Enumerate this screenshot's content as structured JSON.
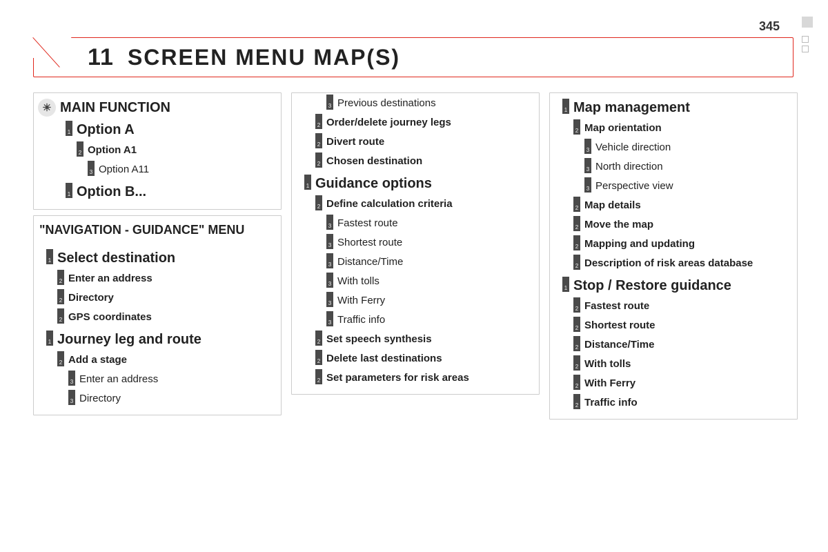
{
  "page_number": "345",
  "header": {
    "number": "11",
    "title": "SCREEN MENU MAP(S)"
  },
  "colors": {
    "accent": "#e0271c",
    "tag_bg": "#4a4a4a",
    "border": "#cccccc",
    "bg": "#ffffff",
    "text": "#222222"
  },
  "col1": {
    "block1": {
      "header": "MAIN FUNCTION",
      "items": [
        {
          "level": 1,
          "num": "1",
          "label": "Option A"
        },
        {
          "level": 2,
          "num": "2",
          "label": "Option A1"
        },
        {
          "level": 3,
          "num": "3",
          "label": "Option A11"
        },
        {
          "level": 1,
          "num": "1",
          "label": "Option B..."
        }
      ]
    },
    "block2": {
      "header": "\"NAVIGATION - GUIDANCE\" MENU",
      "items": [
        {
          "level": 1,
          "num": "1",
          "label": "Select destination"
        },
        {
          "level": 2,
          "num": "2",
          "label": "Enter an address"
        },
        {
          "level": 2,
          "num": "2",
          "label": "Directory"
        },
        {
          "level": 2,
          "num": "2",
          "label": "GPS coordinates"
        },
        {
          "level": 1,
          "num": "1",
          "label": "Journey leg and route"
        },
        {
          "level": 2,
          "num": "2",
          "label": "Add a stage"
        },
        {
          "level": 3,
          "num": "3",
          "label": "Enter an address"
        },
        {
          "level": 3,
          "num": "3",
          "label": "Directory"
        }
      ]
    }
  },
  "col2": {
    "items": [
      {
        "level": 3,
        "num": "3",
        "label": "Previous destinations"
      },
      {
        "level": 2,
        "num": "2",
        "label": "Order/delete journey legs"
      },
      {
        "level": 2,
        "num": "2",
        "label": "Divert route"
      },
      {
        "level": 2,
        "num": "2",
        "label": "Chosen destination"
      },
      {
        "level": 1,
        "num": "1",
        "label": "Guidance options"
      },
      {
        "level": 2,
        "num": "2",
        "label": "Define calculation criteria"
      },
      {
        "level": 3,
        "num": "3",
        "label": "Fastest route"
      },
      {
        "level": 3,
        "num": "3",
        "label": "Shortest route"
      },
      {
        "level": 3,
        "num": "3",
        "label": "Distance/Time"
      },
      {
        "level": 3,
        "num": "3",
        "label": "With tolls"
      },
      {
        "level": 3,
        "num": "3",
        "label": "With Ferry"
      },
      {
        "level": 3,
        "num": "3",
        "label": "Traffic info"
      },
      {
        "level": 2,
        "num": "2",
        "label": "Set speech synthesis"
      },
      {
        "level": 2,
        "num": "2",
        "label": "Delete last destinations"
      },
      {
        "level": 2,
        "num": "2",
        "label": "Set parameters for risk areas"
      }
    ]
  },
  "col3": {
    "items": [
      {
        "level": 1,
        "num": "1",
        "label": "Map management"
      },
      {
        "level": 2,
        "num": "2",
        "label": "Map orientation"
      },
      {
        "level": 3,
        "num": "3",
        "label": "Vehicle direction"
      },
      {
        "level": 3,
        "num": "3",
        "label": "North direction"
      },
      {
        "level": 3,
        "num": "3",
        "label": "Perspective view"
      },
      {
        "level": 2,
        "num": "2",
        "label": "Map details"
      },
      {
        "level": 2,
        "num": "2",
        "label": "Move the map"
      },
      {
        "level": 2,
        "num": "2",
        "label": "Mapping and updating"
      },
      {
        "level": 2,
        "num": "2",
        "label": "Description of risk areas database"
      },
      {
        "level": 1,
        "num": "1",
        "label": "Stop / Restore guidance"
      },
      {
        "level": 2,
        "num": "2",
        "label": "Fastest route"
      },
      {
        "level": 2,
        "num": "2",
        "label": "Shortest route"
      },
      {
        "level": 2,
        "num": "2",
        "label": "Distance/Time"
      },
      {
        "level": 2,
        "num": "2",
        "label": "With tolls"
      },
      {
        "level": 2,
        "num": "2",
        "label": "With Ferry"
      },
      {
        "level": 2,
        "num": "2",
        "label": "Traffic info"
      }
    ]
  }
}
